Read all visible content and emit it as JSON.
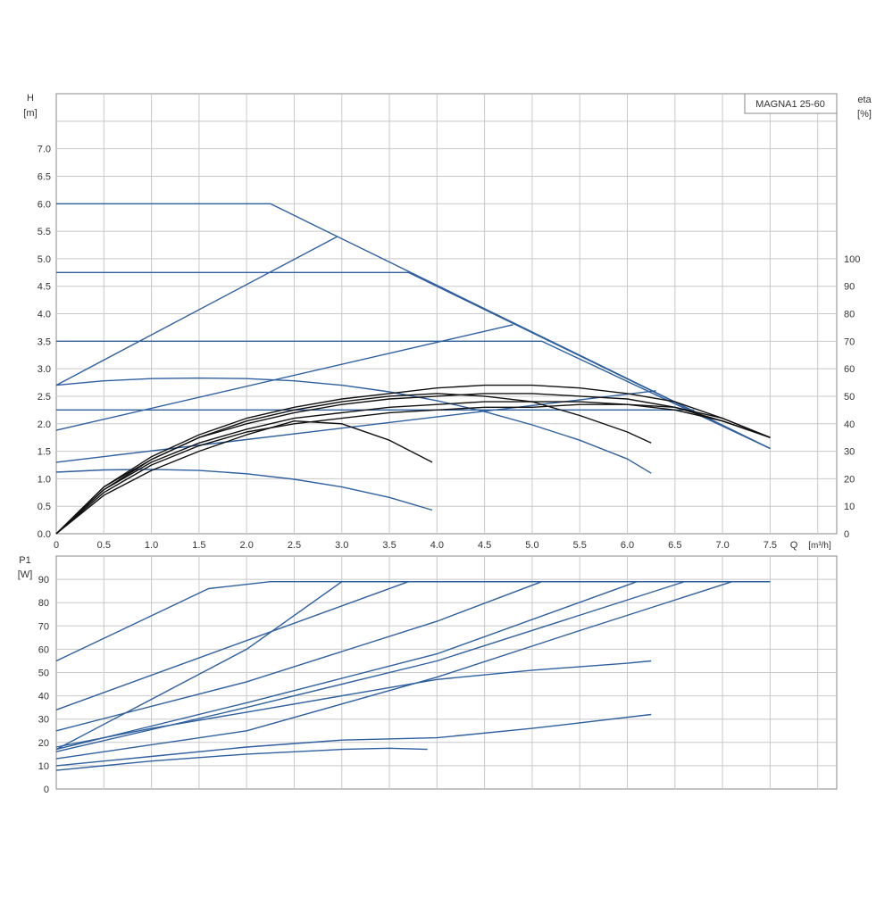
{
  "chart_data": [
    {
      "type": "line",
      "title": "",
      "model_label": "MAGNA1 25-60",
      "ylabel_left": "H",
      "ylabel_left_unit": "[m]",
      "ylabel_right": "eta",
      "ylabel_right_unit": "[%]",
      "xlabel": "Q",
      "xlabel_unit": "[m³/h]",
      "xlim": [
        0,
        8.2
      ],
      "ylim": [
        0,
        8.0
      ],
      "ylim_right": [
        0,
        100
      ],
      "xticks": [
        "0",
        "0.5",
        "1.0",
        "1.5",
        "2.0",
        "2.5",
        "3.0",
        "3.5",
        "4.0",
        "4.5",
        "5.0",
        "5.5",
        "6.0",
        "6.5",
        "7.0",
        "7.5"
      ],
      "yticks": [
        "0.0",
        "0.5",
        "1.0",
        "1.5",
        "2.0",
        "2.5",
        "3.0",
        "3.5",
        "4.0",
        "4.5",
        "5.0",
        "5.5",
        "6.0",
        "6.5",
        "7.0"
      ],
      "yticks_right": [
        "0",
        "10",
        "20",
        "30",
        "40",
        "50",
        "60",
        "70",
        "80",
        "90",
        "100"
      ],
      "grid": true,
      "series_color_head": "#2e5f9e",
      "series_color_eta": "#111111",
      "series": [
        {
          "kind": "head",
          "x": [
            0,
            2.25,
            7.5
          ],
          "y": [
            6.0,
            6.0,
            1.55
          ]
        },
        {
          "kind": "head",
          "x": [
            0,
            3.7,
            7.5
          ],
          "y": [
            4.75,
            4.75,
            1.55
          ]
        },
        {
          "kind": "head",
          "x": [
            0,
            5.1,
            7.5
          ],
          "y": [
            3.5,
            3.5,
            1.55
          ]
        },
        {
          "kind": "head",
          "x": [
            0,
            6.7
          ],
          "y": [
            2.25,
            2.25
          ]
        },
        {
          "kind": "head",
          "x": [
            0,
            2.95
          ],
          "y": [
            2.7,
            5.4
          ]
        },
        {
          "kind": "head",
          "x": [
            0,
            4.8
          ],
          "y": [
            1.88,
            3.8
          ]
        },
        {
          "kind": "head",
          "x": [
            0,
            6.3
          ],
          "y": [
            1.3,
            2.6
          ]
        },
        {
          "kind": "head",
          "x": [
            0,
            0.5,
            1.0,
            1.5,
            2.0,
            2.5,
            3.0,
            3.5,
            4.0,
            4.5,
            5.0,
            5.5,
            6.0,
            6.25
          ],
          "y": [
            2.7,
            2.78,
            2.82,
            2.83,
            2.82,
            2.78,
            2.7,
            2.58,
            2.42,
            2.22,
            1.98,
            1.7,
            1.36,
            1.1
          ]
        },
        {
          "kind": "head",
          "x": [
            0,
            0.5,
            1.0,
            1.5,
            2.0,
            2.5,
            3.0,
            3.5,
            3.95
          ],
          "y": [
            1.12,
            1.16,
            1.17,
            1.15,
            1.09,
            0.99,
            0.85,
            0.66,
            0.43
          ]
        },
        {
          "kind": "eta",
          "x": [
            0,
            0.5,
            1.0,
            1.5,
            2.0,
            2.5,
            3.0,
            3.5,
            4.0,
            4.5,
            5.0,
            5.5,
            6.0,
            6.5,
            7.0,
            7.5
          ],
          "y": [
            0,
            15,
            25,
            32,
            37,
            40,
            42,
            44,
            45,
            46,
            46,
            47,
            47,
            46,
            42,
            35
          ]
        },
        {
          "kind": "eta",
          "x": [
            0,
            0.5,
            1.0,
            1.5,
            2.0,
            2.5,
            3.0,
            3.5,
            4.0,
            4.5,
            5.0,
            5.5,
            6.0,
            6.5,
            7.0,
            7.5
          ],
          "y": [
            0,
            16,
            26,
            33,
            38,
            42,
            44,
            46,
            47,
            48,
            48,
            48,
            47,
            45,
            41,
            35
          ]
        },
        {
          "kind": "eta",
          "x": [
            0,
            0.5,
            1.0,
            1.5,
            2.0,
            2.5,
            3.0,
            3.5,
            4.0,
            4.5,
            5.0,
            5.5,
            6.0,
            6.5,
            7.0,
            7.5
          ],
          "y": [
            0,
            17,
            27,
            35,
            40,
            44,
            47,
            49,
            50,
            51,
            51,
            50,
            49,
            46,
            41,
            35
          ]
        },
        {
          "kind": "eta",
          "x": [
            0,
            0.5,
            1.0,
            1.5,
            2.0,
            2.5,
            3.0,
            3.5,
            4.0,
            4.5,
            5.0,
            5.5,
            6.0,
            6.5,
            7.0,
            7.5
          ],
          "y": [
            0,
            17,
            28,
            36,
            42,
            46,
            49,
            51,
            53,
            54,
            54,
            53,
            51,
            48,
            42,
            35
          ]
        },
        {
          "kind": "eta",
          "x": [
            0,
            0.5,
            1.0,
            1.5,
            2.0,
            2.5,
            3.0,
            3.5,
            4.0,
            4.5,
            5.0,
            5.5,
            6.0,
            6.25
          ],
          "y": [
            0,
            16,
            27,
            35,
            41,
            45,
            48,
            50,
            51,
            50,
            48,
            43,
            37,
            33
          ]
        },
        {
          "kind": "eta",
          "x": [
            0,
            0.5,
            1.0,
            1.5,
            2.0,
            2.5,
            3.0,
            3.5,
            3.95
          ],
          "y": [
            0,
            14,
            23,
            30,
            36,
            41,
            40,
            34,
            26
          ]
        }
      ]
    },
    {
      "type": "line",
      "title": "",
      "ylabel": "P1",
      "ylabel_unit": "[W]",
      "xlabel": "",
      "xlim": [
        0,
        8.2
      ],
      "ylim": [
        0,
        100
      ],
      "yticks": [
        "0",
        "10",
        "20",
        "30",
        "40",
        "50",
        "60",
        "70",
        "80",
        "90"
      ],
      "grid": true,
      "series_color": "#2e5f9e",
      "series": [
        {
          "x": [
            0,
            1.6,
            2.25,
            7.5
          ],
          "y": [
            55,
            86,
            89,
            89
          ]
        },
        {
          "x": [
            0,
            3.7,
            7.5
          ],
          "y": [
            34,
            89,
            89
          ]
        },
        {
          "x": [
            0,
            2.0,
            3.0,
            7.5
          ],
          "y": [
            17,
            60,
            89,
            89
          ]
        },
        {
          "x": [
            0,
            2.0,
            4.0,
            5.1,
            7.5
          ],
          "y": [
            25,
            46,
            72,
            89,
            89
          ]
        },
        {
          "x": [
            0,
            2.0,
            4.0,
            6.1
          ],
          "y": [
            17,
            37,
            58,
            89
          ]
        },
        {
          "x": [
            0,
            2.0,
            4.0,
            6.6
          ],
          "y": [
            16,
            35,
            55,
            89
          ]
        },
        {
          "x": [
            0,
            2.0,
            4.0,
            5.5,
            7.1
          ],
          "y": [
            13,
            25,
            48,
            68,
            89
          ]
        },
        {
          "x": [
            0,
            1.0,
            2.0,
            3.0,
            4.0,
            5.0,
            6.25
          ],
          "y": [
            10,
            14,
            18,
            21,
            22,
            26,
            32
          ]
        },
        {
          "x": [
            0,
            1.0,
            2.0,
            3.0,
            4.0,
            5.0,
            6.0,
            6.25
          ],
          "y": [
            18,
            26,
            33,
            40,
            47,
            51,
            54,
            55
          ]
        },
        {
          "x": [
            0,
            1.0,
            2.0,
            3.0,
            3.5,
            3.9
          ],
          "y": [
            8,
            12,
            15,
            17,
            17.5,
            17
          ]
        }
      ]
    }
  ]
}
